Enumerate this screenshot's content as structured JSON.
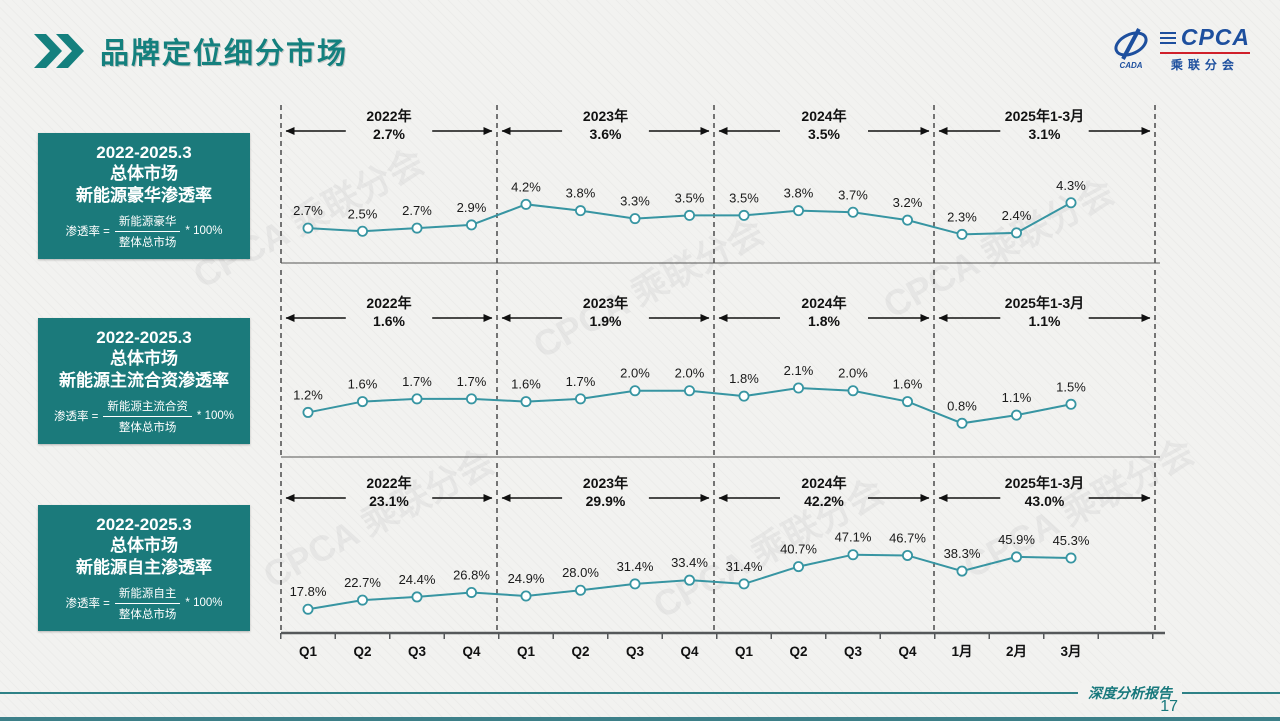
{
  "header": {
    "title": "品牌定位细分市场",
    "logo": {
      "main": "CPCA",
      "sub": "乘联分会",
      "emblem_caption": "CADA"
    }
  },
  "watermark": "CPCA 乘联分会",
  "label_boxes": [
    {
      "period": "2022-2025.3",
      "market": "总体市场",
      "metric": "新能源豪华渗透率",
      "formula_prefix": "渗透率 =",
      "numerator": "新能源豪华",
      "denominator": "整体总市场",
      "formula_suffix": "* 100%"
    },
    {
      "period": "2022-2025.3",
      "market": "总体市场",
      "metric": "新能源主流合资渗透率",
      "formula_prefix": "渗透率 =",
      "numerator": "新能源主流合资",
      "denominator": "整体总市场",
      "formula_suffix": "* 100%"
    },
    {
      "period": "2022-2025.3",
      "market": "总体市场",
      "metric": "新能源自主渗透率",
      "formula_prefix": "渗透率 =",
      "numerator": "新能源自主",
      "denominator": "整体总市场",
      "formula_suffix": "* 100%"
    }
  ],
  "x_axis": [
    "Q1",
    "Q2",
    "Q3",
    "Q4",
    "Q1",
    "Q2",
    "Q3",
    "Q4",
    "Q1",
    "Q2",
    "Q3",
    "Q4",
    "1月",
    "2月",
    "3月"
  ],
  "chart_data": [
    {
      "type": "line",
      "name": "总体市场新能源豪华渗透率",
      "categories": [
        "Q1",
        "Q2",
        "Q3",
        "Q4",
        "Q1",
        "Q2",
        "Q3",
        "Q4",
        "Q1",
        "Q2",
        "Q3",
        "Q4",
        "1月",
        "2月",
        "3月"
      ],
      "values": [
        2.7,
        2.5,
        2.7,
        2.9,
        4.2,
        3.8,
        3.3,
        3.5,
        3.5,
        3.8,
        3.7,
        3.2,
        2.3,
        2.4,
        4.3
      ],
      "segments": [
        {
          "label": "2022年",
          "avg": "2.7%"
        },
        {
          "label": "2023年",
          "avg": "3.6%"
        },
        {
          "label": "2024年",
          "avg": "3.5%"
        },
        {
          "label": "2025年1-3月",
          "avg": "3.1%"
        }
      ],
      "ylim": [
        1.0,
        7.0
      ],
      "line_color": "#3795a2",
      "marker": "open-circle"
    },
    {
      "type": "line",
      "name": "总体市场新能源主流合资渗透率",
      "categories": [
        "Q1",
        "Q2",
        "Q3",
        "Q4",
        "Q1",
        "Q2",
        "Q3",
        "Q4",
        "Q1",
        "Q2",
        "Q3",
        "Q4",
        "1月",
        "2月",
        "3月"
      ],
      "values": [
        1.2,
        1.6,
        1.7,
        1.7,
        1.6,
        1.7,
        2.0,
        2.0,
        1.8,
        2.1,
        2.0,
        1.6,
        0.8,
        1.1,
        1.5
      ],
      "segments": [
        {
          "label": "2022年",
          "avg": "1.6%"
        },
        {
          "label": "2023年",
          "avg": "1.9%"
        },
        {
          "label": "2024年",
          "avg": "1.8%"
        },
        {
          "label": "2025年1-3月",
          "avg": "1.1%"
        }
      ],
      "ylim": [
        0.0,
        3.5
      ],
      "line_color": "#3795a2",
      "marker": "open-circle"
    },
    {
      "type": "line",
      "name": "总体市场新能源自主渗透率",
      "categories": [
        "Q1",
        "Q2",
        "Q3",
        "Q4",
        "Q1",
        "Q2",
        "Q3",
        "Q4",
        "Q1",
        "Q2",
        "Q3",
        "Q4",
        "1月",
        "2月",
        "3月"
      ],
      "values": [
        17.8,
        22.7,
        24.4,
        26.8,
        24.9,
        28.0,
        31.4,
        33.4,
        31.4,
        40.7,
        47.1,
        46.7,
        38.3,
        45.9,
        45.3
      ],
      "segments": [
        {
          "label": "2022年",
          "avg": "23.1%"
        },
        {
          "label": "2023年",
          "avg": "29.9%"
        },
        {
          "label": "2024年",
          "avg": "42.2%"
        },
        {
          "label": "2025年1-3月",
          "avg": "43.0%"
        }
      ],
      "ylim": [
        12,
        55
      ],
      "line_color": "#3795a2",
      "marker": "open-circle"
    }
  ],
  "footer": {
    "report_label": "深度分析报告",
    "page_number": "17"
  },
  "colors": {
    "accent_teal": "#14807e",
    "box_teal": "#1b7a7b",
    "series_teal": "#3795a2",
    "logo_blue": "#1d4f9e",
    "logo_red": "#d0202a"
  }
}
